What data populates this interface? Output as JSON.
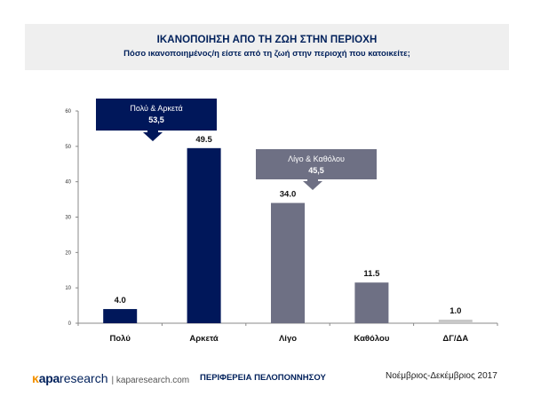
{
  "header": {
    "title": "ΙΚΑΝΟΠΟΙΗΣΗ ΑΠΟ ΤΗ ΖΩΗ ΣΤΗΝ ΠΕΡΙΟΧΗ",
    "subtitle": "Πόσο ικανοποιημένος/η είστε από τη ζωή στην περιοχή που κατοικείτε;"
  },
  "chart_data": {
    "type": "bar",
    "categories": [
      "Πολύ",
      "Αρκετά",
      "Λίγο",
      "Καθόλου",
      "ΔΓ/ΔΑ"
    ],
    "values": [
      4.0,
      49.5,
      34.0,
      11.5,
      1.0
    ],
    "value_labels": [
      "4.0",
      "49.5",
      "34.0",
      "11.5",
      "1.0"
    ],
    "colors": [
      "#00175a",
      "#00175a",
      "#6e7084",
      "#6e7084",
      "#c8c8c8"
    ],
    "ylim": [
      0,
      60
    ],
    "yticks": [
      0,
      10,
      20,
      30,
      40,
      50,
      60
    ],
    "grid": false,
    "annotations": [
      {
        "label": "Πολύ & Αρκετά",
        "value": "53,5",
        "color": "#00175a",
        "arrow_to_category": 1
      },
      {
        "label": "Λίγο & Καθόλου",
        "value": "45,5",
        "color": "#6e7084",
        "arrow_to_category": 3
      }
    ]
  },
  "footer": {
    "logo_prefix": "ĸ",
    "logo_brand": "apa",
    "logo_rest": "research",
    "logo_site": "| kaparesearch.com",
    "region": "ΠΕΡΙΦΕΡΕΙΑ ΠΕΛΟΠΟΝΝΗΣΟΥ",
    "date": "Νοέμβριος-Δεκέμβριος 2017"
  }
}
